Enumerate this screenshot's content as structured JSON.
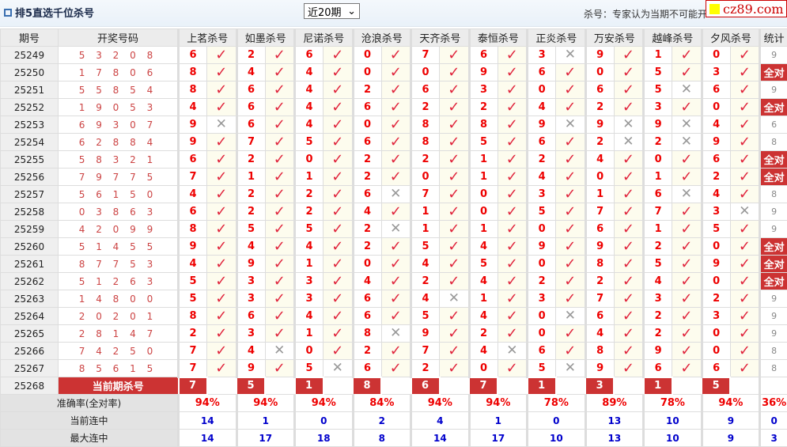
{
  "header": {
    "title": "排5直选千位杀号",
    "period_select": "近20期",
    "note": "杀号：专家认为当期不可能开",
    "logo_text": "cz89.com"
  },
  "columns": {
    "issue": "期号",
    "draw": "开奖号码",
    "experts": [
      "上茗杀号",
      "如墨杀号",
      "尼诺杀号",
      "沧浪杀号",
      "天齐杀号",
      "泰恒杀号",
      "正炎杀号",
      "万安杀号",
      "越峰杀号",
      "夕风杀号"
    ],
    "stat": "统计"
  },
  "rows": [
    {
      "issue": "25249",
      "draw": "5 3 2 0 8",
      "kills": [
        "6",
        "2",
        "6",
        "0",
        "7",
        "6",
        "3",
        "9",
        "1",
        "0"
      ],
      "hits": [
        1,
        1,
        1,
        1,
        1,
        1,
        0,
        1,
        1,
        1
      ],
      "stat": "9"
    },
    {
      "issue": "25250",
      "draw": "1 7 8 0 6",
      "kills": [
        "8",
        "4",
        "4",
        "0",
        "0",
        "9",
        "6",
        "0",
        "5",
        "3"
      ],
      "hits": [
        1,
        1,
        1,
        1,
        1,
        1,
        1,
        1,
        1,
        1
      ],
      "stat": "全对"
    },
    {
      "issue": "25251",
      "draw": "5 5 8 5 4",
      "kills": [
        "8",
        "6",
        "4",
        "2",
        "6",
        "3",
        "0",
        "6",
        "5",
        "6"
      ],
      "hits": [
        1,
        1,
        1,
        1,
        1,
        1,
        1,
        1,
        0,
        1
      ],
      "stat": "9"
    },
    {
      "issue": "25252",
      "draw": "1 9 0 5 3",
      "kills": [
        "4",
        "6",
        "4",
        "6",
        "2",
        "2",
        "4",
        "2",
        "3",
        "0"
      ],
      "hits": [
        1,
        1,
        1,
        1,
        1,
        1,
        1,
        1,
        1,
        1
      ],
      "stat": "全对"
    },
    {
      "issue": "25253",
      "draw": "6 9 3 0 7",
      "kills": [
        "9",
        "6",
        "4",
        "0",
        "8",
        "8",
        "9",
        "9",
        "9",
        "4"
      ],
      "hits": [
        0,
        1,
        1,
        1,
        1,
        1,
        0,
        0,
        0,
        1
      ],
      "stat": "6"
    },
    {
      "issue": "25254",
      "draw": "6 2 8 8 4",
      "kills": [
        "9",
        "7",
        "5",
        "6",
        "8",
        "5",
        "6",
        "2",
        "2",
        "9"
      ],
      "hits": [
        1,
        1,
        1,
        1,
        1,
        1,
        1,
        0,
        0,
        1
      ],
      "stat": "8"
    },
    {
      "issue": "25255",
      "draw": "5 8 3 2 1",
      "kills": [
        "6",
        "2",
        "0",
        "2",
        "2",
        "1",
        "2",
        "4",
        "0",
        "6"
      ],
      "hits": [
        1,
        1,
        1,
        1,
        1,
        1,
        1,
        1,
        1,
        1
      ],
      "stat": "全对"
    },
    {
      "issue": "25256",
      "draw": "7 9 7 7 5",
      "kills": [
        "7",
        "1",
        "1",
        "2",
        "0",
        "1",
        "4",
        "0",
        "1",
        "2"
      ],
      "hits": [
        1,
        1,
        1,
        1,
        1,
        1,
        1,
        1,
        1,
        1
      ],
      "stat": "全对"
    },
    {
      "issue": "25257",
      "draw": "5 6 1 5 0",
      "kills": [
        "4",
        "2",
        "2",
        "6",
        "7",
        "0",
        "3",
        "1",
        "6",
        "4"
      ],
      "hits": [
        1,
        1,
        1,
        0,
        1,
        1,
        1,
        1,
        0,
        1
      ],
      "stat": "8"
    },
    {
      "issue": "25258",
      "draw": "0 3 8 6 3",
      "kills": [
        "6",
        "2",
        "2",
        "4",
        "1",
        "0",
        "5",
        "7",
        "7",
        "3"
      ],
      "hits": [
        1,
        1,
        1,
        1,
        1,
        1,
        1,
        1,
        1,
        0
      ],
      "stat": "9"
    },
    {
      "issue": "25259",
      "draw": "4 2 0 9 9",
      "kills": [
        "8",
        "5",
        "5",
        "2",
        "1",
        "1",
        "0",
        "6",
        "1",
        "5"
      ],
      "hits": [
        1,
        1,
        1,
        0,
        1,
        1,
        1,
        1,
        1,
        1
      ],
      "stat": "9"
    },
    {
      "issue": "25260",
      "draw": "5 1 4 5 5",
      "kills": [
        "9",
        "4",
        "4",
        "2",
        "5",
        "4",
        "9",
        "9",
        "2",
        "0"
      ],
      "hits": [
        1,
        1,
        1,
        1,
        1,
        1,
        1,
        1,
        1,
        1
      ],
      "stat": "全对"
    },
    {
      "issue": "25261",
      "draw": "8 7 7 5 3",
      "kills": [
        "4",
        "9",
        "1",
        "0",
        "4",
        "5",
        "0",
        "8",
        "5",
        "9"
      ],
      "hits": [
        1,
        1,
        1,
        1,
        1,
        1,
        1,
        1,
        1,
        1
      ],
      "stat": "全对"
    },
    {
      "issue": "25262",
      "draw": "5 1 2 6 3",
      "kills": [
        "5",
        "3",
        "3",
        "4",
        "2",
        "4",
        "2",
        "2",
        "4",
        "0"
      ],
      "hits": [
        1,
        1,
        1,
        1,
        1,
        1,
        1,
        1,
        1,
        1
      ],
      "stat": "全对"
    },
    {
      "issue": "25263",
      "draw": "1 4 8 0 0",
      "kills": [
        "5",
        "3",
        "3",
        "6",
        "4",
        "1",
        "3",
        "7",
        "3",
        "2"
      ],
      "hits": [
        1,
        1,
        1,
        1,
        0,
        1,
        1,
        1,
        1,
        1
      ],
      "stat": "9"
    },
    {
      "issue": "25264",
      "draw": "2 0 2 0 1",
      "kills": [
        "8",
        "6",
        "4",
        "6",
        "5",
        "4",
        "0",
        "6",
        "2",
        "3"
      ],
      "hits": [
        1,
        1,
        1,
        1,
        1,
        1,
        0,
        1,
        1,
        1
      ],
      "stat": "9"
    },
    {
      "issue": "25265",
      "draw": "2 8 1 4 7",
      "kills": [
        "2",
        "3",
        "1",
        "8",
        "9",
        "2",
        "0",
        "4",
        "2",
        "0"
      ],
      "hits": [
        1,
        1,
        1,
        0,
        1,
        1,
        1,
        1,
        1,
        1
      ],
      "stat": "9"
    },
    {
      "issue": "25266",
      "draw": "7 4 2 5 0",
      "kills": [
        "7",
        "4",
        "0",
        "2",
        "7",
        "4",
        "6",
        "8",
        "9",
        "0"
      ],
      "hits": [
        1,
        0,
        1,
        1,
        1,
        0,
        1,
        1,
        1,
        1
      ],
      "stat": "8"
    },
    {
      "issue": "25267",
      "draw": "8 5 6 1 5",
      "kills": [
        "7",
        "9",
        "5",
        "6",
        "2",
        "0",
        "5",
        "9",
        "6",
        "6"
      ],
      "hits": [
        1,
        1,
        0,
        1,
        1,
        1,
        0,
        1,
        1,
        1
      ],
      "stat": "8"
    }
  ],
  "current": {
    "issue": "25268",
    "label": "当前期杀号",
    "kills": [
      "7",
      "5",
      "1",
      "8",
      "6",
      "7",
      "1",
      "3",
      "1",
      "5"
    ]
  },
  "stats": [
    {
      "label": "准确率(全对率)",
      "values": [
        "94%",
        "94%",
        "94%",
        "84%",
        "94%",
        "94%",
        "78%",
        "89%",
        "78%",
        "94%"
      ],
      "stat": "36%"
    },
    {
      "label": "当前连中",
      "values": [
        "14",
        "1",
        "0",
        "2",
        "4",
        "1",
        "0",
        "13",
        "10",
        "9"
      ],
      "stat": "0"
    },
    {
      "label": "最大连中",
      "values": [
        "14",
        "17",
        "18",
        "8",
        "14",
        "17",
        "10",
        "13",
        "10",
        "9"
      ],
      "stat": "3"
    }
  ],
  "icons": {
    "hit": "check-icon",
    "miss": "cross-icon"
  },
  "colors": {
    "kill_red": "#e00000",
    "badge_red": "#cc3333",
    "streak_blue": "#0000cc",
    "hit_bg": "#fdfcee"
  }
}
